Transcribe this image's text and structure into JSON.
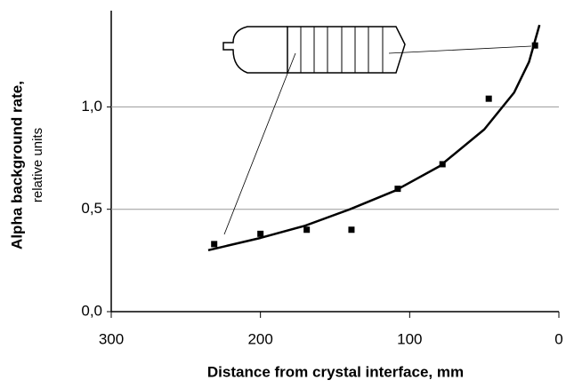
{
  "chart_data": {
    "type": "scatter",
    "xlabel": "Distance from crystal interface, mm",
    "ylabel": "Alpha background rate,",
    "ylabel_sub": "relative units",
    "xlim": [
      300,
      0
    ],
    "xticks": [
      300,
      200,
      100,
      0
    ],
    "ylim": [
      0,
      1.47
    ],
    "yticks": [
      {
        "value": 0,
        "label": "0,0"
      },
      {
        "value": 0.5,
        "label": "0,5"
      },
      {
        "value": 1.0,
        "label": "1,0"
      }
    ],
    "grid": true,
    "series": [
      {
        "type": "scatter",
        "color": "#000000",
        "x": [
          231,
          200,
          169,
          139,
          108,
          78,
          47,
          16
        ],
        "values": [
          0.33,
          0.38,
          0.4,
          0.4,
          0.6,
          0.72,
          1.04,
          1.3
        ]
      },
      {
        "type": "line",
        "color": "#000000",
        "x": [
          235,
          200,
          170,
          140,
          110,
          80,
          50,
          30,
          20,
          13
        ],
        "values": [
          0.3,
          0.36,
          0.42,
          0.5,
          0.59,
          0.71,
          0.89,
          1.07,
          1.22,
          1.4
        ]
      }
    ]
  }
}
